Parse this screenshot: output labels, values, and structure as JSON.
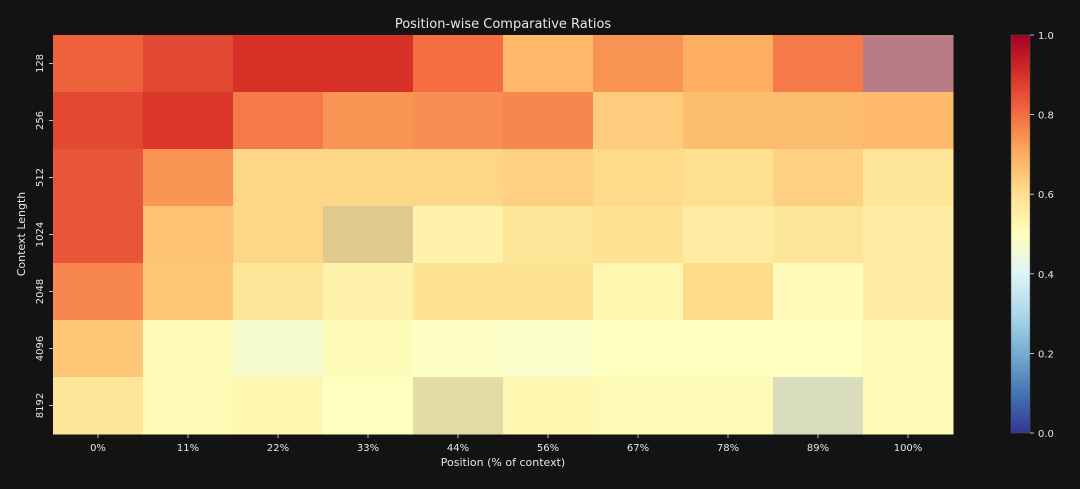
{
  "chart_data": {
    "type": "heatmap",
    "title": "Position-wise Comparative Ratios",
    "xlabel": "Position (% of context)",
    "ylabel": "Context Length",
    "x_categories": [
      "0%",
      "11%",
      "22%",
      "33%",
      "44%",
      "56%",
      "67%",
      "78%",
      "89%",
      "100%"
    ],
    "y_categories": [
      "128",
      "256",
      "512",
      "1024",
      "2048",
      "4096",
      "8192"
    ],
    "values": [
      [
        0.82,
        0.86,
        0.9,
        0.9,
        0.8,
        0.68,
        0.74,
        0.7,
        0.78,
        null
      ],
      [
        0.86,
        0.89,
        0.78,
        0.74,
        0.75,
        0.76,
        0.64,
        0.67,
        0.67,
        0.68
      ],
      [
        0.84,
        0.74,
        0.62,
        0.62,
        0.62,
        0.63,
        0.61,
        0.6,
        0.63,
        0.58
      ],
      [
        0.84,
        0.66,
        0.62,
        null,
        0.54,
        0.58,
        0.59,
        0.56,
        0.58,
        0.56
      ],
      [
        0.76,
        0.65,
        0.58,
        0.54,
        0.59,
        0.59,
        0.53,
        0.61,
        0.51,
        0.56
      ],
      [
        0.65,
        0.51,
        0.47,
        0.51,
        0.49,
        0.48,
        0.5,
        0.5,
        0.5,
        0.52
      ],
      [
        0.58,
        0.52,
        0.53,
        0.5,
        null,
        0.53,
        0.52,
        0.52,
        null,
        0.52
      ]
    ],
    "masked_colors": [
      {
        "row": 0,
        "col": 9,
        "color": "#b97c86"
      },
      {
        "row": 3,
        "col": 3,
        "color": "#e0c98c"
      },
      {
        "row": 6,
        "col": 4,
        "color": "#e3dca6"
      },
      {
        "row": 6,
        "col": 8,
        "color": "#dadcbe"
      }
    ],
    "colorbar": {
      "colormap": "RdYlBu_r",
      "range": [
        0.0,
        1.0
      ],
      "ticks": [
        "0.0",
        "0.2",
        "0.4",
        "0.6",
        "0.8",
        "1.0"
      ]
    },
    "colors": {
      "background": "#131313",
      "text": "#e6e6e6"
    }
  }
}
